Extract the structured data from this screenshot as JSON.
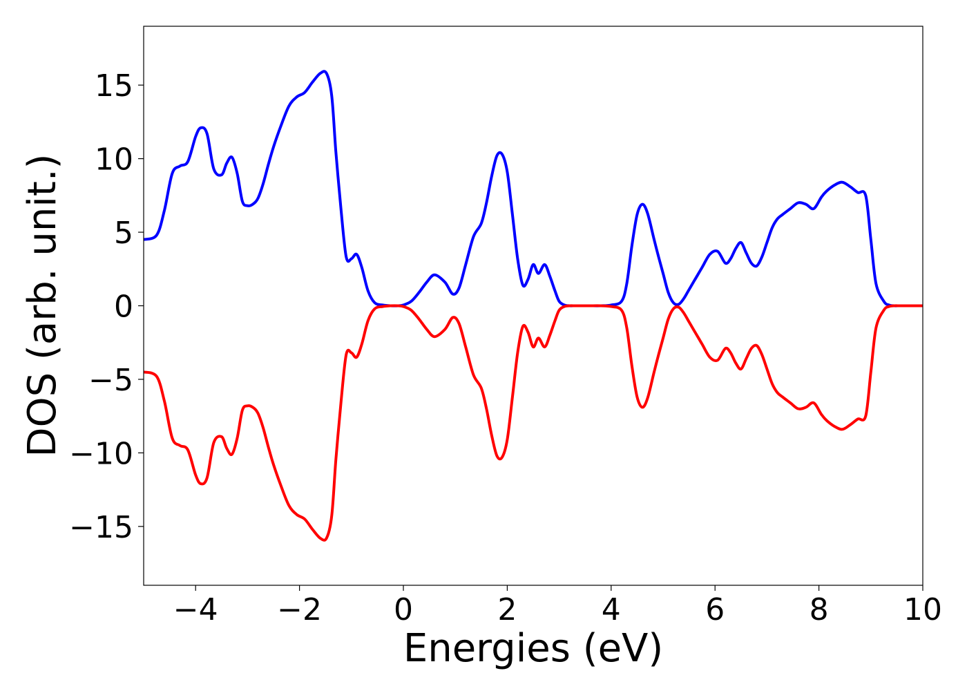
{
  "chart_data": {
    "type": "line",
    "title": "",
    "xlabel": "Energies (eV)",
    "ylabel": "DOS (arb. unit.)",
    "xlim": [
      -5,
      10
    ],
    "ylim": [
      -19,
      19
    ],
    "x_ticks": [
      -4,
      -2,
      0,
      2,
      4,
      6,
      8,
      10
    ],
    "x_tick_labels": [
      "−4",
      "−2",
      "0",
      "2",
      "4",
      "6",
      "8",
      "10"
    ],
    "y_ticks": [
      -15,
      -10,
      -5,
      0,
      5,
      10,
      15
    ],
    "y_tick_labels": [
      "−15",
      "−10",
      "−5",
      "0",
      "5",
      "10",
      "15"
    ],
    "grid": false,
    "legend": "none",
    "series": [
      {
        "color": "#0000ff",
        "x": [
          -5.0,
          -4.75,
          -4.6,
          -4.45,
          -4.3,
          -4.15,
          -4.0,
          -3.9,
          -3.78,
          -3.65,
          -3.5,
          -3.4,
          -3.3,
          -3.2,
          -3.1,
          -3.0,
          -2.9,
          -2.8,
          -2.7,
          -2.6,
          -2.5,
          -2.35,
          -2.2,
          -2.05,
          -1.9,
          -1.75,
          -1.6,
          -1.48,
          -1.38,
          -1.3,
          -1.2,
          -1.1,
          -1.0,
          -0.9,
          -0.8,
          -0.68,
          -0.55,
          -0.4,
          -0.25,
          -0.1,
          0.0,
          0.15,
          0.3,
          0.45,
          0.6,
          0.8,
          0.95,
          1.07,
          1.2,
          1.35,
          1.5,
          1.6,
          1.7,
          1.8,
          1.9,
          2.0,
          2.1,
          2.2,
          2.3,
          2.4,
          2.5,
          2.6,
          2.72,
          2.82,
          2.92,
          3.0,
          3.1,
          3.2,
          3.3,
          3.4,
          3.5,
          3.6,
          3.8,
          4.0,
          4.2,
          4.3,
          4.4,
          4.5,
          4.6,
          4.7,
          4.82,
          4.9,
          5.0,
          5.1,
          5.2,
          5.3,
          5.4,
          5.5,
          5.6,
          5.75,
          5.9,
          6.05,
          6.2,
          6.3,
          6.4,
          6.5,
          6.6,
          6.7,
          6.8,
          6.9,
          7.0,
          7.1,
          7.2,
          7.3,
          7.45,
          7.6,
          7.75,
          7.9,
          8.05,
          8.15,
          8.3,
          8.45,
          8.6,
          8.75,
          8.9,
          9.0,
          9.1,
          9.25,
          9.35,
          9.45,
          9.55,
          9.65,
          9.75,
          9.85,
          10.0
        ],
        "y": [
          4.5,
          4.8,
          6.5,
          9.0,
          9.5,
          9.8,
          11.5,
          12.1,
          11.7,
          9.3,
          8.9,
          9.7,
          10.1,
          9.0,
          7.1,
          6.8,
          6.9,
          7.3,
          8.3,
          9.6,
          10.8,
          12.3,
          13.6,
          14.2,
          14.5,
          15.2,
          15.8,
          15.8,
          14.3,
          10.5,
          6.5,
          3.3,
          3.2,
          3.5,
          2.6,
          1.0,
          0.2,
          0.05,
          0.0,
          0.0,
          0.05,
          0.3,
          0.9,
          1.6,
          2.1,
          1.6,
          0.8,
          1.2,
          2.8,
          4.7,
          5.6,
          7.0,
          8.8,
          10.2,
          10.3,
          9.1,
          6.2,
          3.2,
          1.4,
          1.8,
          2.8,
          2.2,
          2.8,
          2.0,
          1.0,
          0.3,
          0.05,
          0.0,
          0.0,
          0.0,
          0.0,
          0.0,
          0.0,
          0.05,
          0.3,
          1.5,
          4.1,
          6.2,
          6.9,
          6.3,
          4.6,
          3.5,
          2.2,
          0.9,
          0.2,
          0.1,
          0.5,
          1.1,
          1.7,
          2.6,
          3.5,
          3.7,
          2.9,
          3.2,
          3.9,
          4.3,
          3.6,
          2.9,
          2.7,
          3.3,
          4.3,
          5.3,
          5.9,
          6.2,
          6.6,
          7.0,
          6.9,
          6.6,
          7.4,
          7.8,
          8.2,
          8.4,
          8.1,
          7.7,
          7.5,
          4.5,
          1.5,
          0.3,
          0.05,
          0.0,
          0.0,
          0.0,
          0.0,
          0.0,
          0.0
        ]
      },
      {
        "color": "#ff0000",
        "x": [
          -5.0,
          -4.75,
          -4.6,
          -4.45,
          -4.3,
          -4.15,
          -4.0,
          -3.9,
          -3.78,
          -3.65,
          -3.5,
          -3.4,
          -3.3,
          -3.2,
          -3.1,
          -3.0,
          -2.9,
          -2.8,
          -2.7,
          -2.6,
          -2.5,
          -2.35,
          -2.2,
          -2.05,
          -1.9,
          -1.75,
          -1.6,
          -1.48,
          -1.38,
          -1.3,
          -1.2,
          -1.1,
          -1.0,
          -0.9,
          -0.8,
          -0.68,
          -0.55,
          -0.4,
          -0.25,
          -0.1,
          0.0,
          0.15,
          0.3,
          0.45,
          0.6,
          0.8,
          0.95,
          1.07,
          1.2,
          1.35,
          1.5,
          1.6,
          1.7,
          1.8,
          1.9,
          2.0,
          2.1,
          2.2,
          2.3,
          2.4,
          2.5,
          2.6,
          2.72,
          2.82,
          2.92,
          3.0,
          3.1,
          3.2,
          3.3,
          3.4,
          3.5,
          3.6,
          3.8,
          4.0,
          4.2,
          4.3,
          4.4,
          4.5,
          4.6,
          4.7,
          4.82,
          4.9,
          5.0,
          5.1,
          5.2,
          5.3,
          5.4,
          5.5,
          5.6,
          5.75,
          5.9,
          6.05,
          6.2,
          6.3,
          6.4,
          6.5,
          6.6,
          6.7,
          6.8,
          6.9,
          7.0,
          7.1,
          7.2,
          7.3,
          7.45,
          7.6,
          7.75,
          7.9,
          8.05,
          8.15,
          8.3,
          8.45,
          8.6,
          8.75,
          8.9,
          9.0,
          9.1,
          9.25,
          9.35,
          9.45,
          9.55,
          9.65,
          9.75,
          9.85,
          10.0
        ],
        "y": [
          -4.5,
          -4.8,
          -6.5,
          -9.0,
          -9.5,
          -9.8,
          -11.5,
          -12.1,
          -11.7,
          -9.3,
          -8.9,
          -9.7,
          -10.1,
          -9.0,
          -7.1,
          -6.8,
          -6.9,
          -7.3,
          -8.3,
          -9.6,
          -10.8,
          -12.3,
          -13.6,
          -14.2,
          -14.5,
          -15.2,
          -15.8,
          -15.8,
          -14.3,
          -10.5,
          -6.5,
          -3.3,
          -3.2,
          -3.5,
          -2.6,
          -1.0,
          -0.2,
          -0.05,
          0.0,
          0.0,
          -0.05,
          -0.3,
          -0.9,
          -1.6,
          -2.1,
          -1.6,
          -0.8,
          -1.2,
          -2.8,
          -4.7,
          -5.6,
          -7.0,
          -8.8,
          -10.2,
          -10.3,
          -9.1,
          -6.2,
          -3.2,
          -1.4,
          -1.8,
          -2.8,
          -2.2,
          -2.8,
          -2.0,
          -1.0,
          -0.3,
          -0.05,
          0.0,
          0.0,
          0.0,
          0.0,
          0.0,
          0.0,
          -0.05,
          -0.3,
          -1.5,
          -4.1,
          -6.2,
          -6.9,
          -6.3,
          -4.6,
          -3.5,
          -2.2,
          -0.9,
          -0.2,
          -0.1,
          -0.5,
          -1.1,
          -1.7,
          -2.6,
          -3.5,
          -3.7,
          -2.9,
          -3.2,
          -3.9,
          -4.3,
          -3.6,
          -2.9,
          -2.7,
          -3.3,
          -4.3,
          -5.3,
          -5.9,
          -6.2,
          -6.6,
          -7.0,
          -6.9,
          -6.6,
          -7.4,
          -7.8,
          -8.2,
          -8.4,
          -8.1,
          -7.7,
          -7.5,
          -4.5,
          -1.5,
          -0.3,
          -0.05,
          0.0,
          0.0,
          0.0,
          0.0,
          0.0,
          0.0
        ]
      }
    ]
  }
}
